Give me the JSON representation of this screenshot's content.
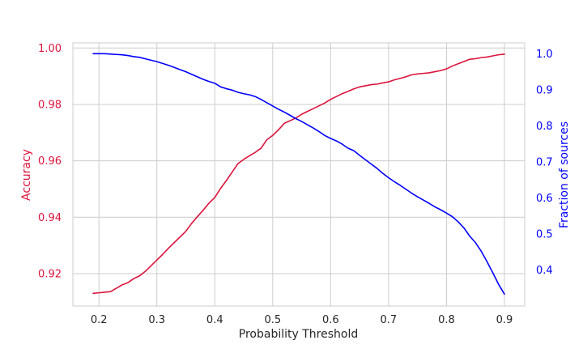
{
  "chart_data": {
    "type": "line",
    "xlabel": "Probability Threshold",
    "xlim": [
      0.155,
      0.935
    ],
    "xticks": [
      0.2,
      0.3,
      0.4,
      0.5,
      0.6,
      0.7,
      0.8,
      0.9
    ],
    "grid": true,
    "y_left": {
      "label": "Accuracy",
      "color": "#dc143c",
      "lim": [
        0.9085,
        1.0018
      ],
      "ticks": [
        0.92,
        0.94,
        0.96,
        0.98,
        1.0
      ]
    },
    "y_right": {
      "label": "Fraction of sources",
      "color": "#0000ff",
      "lim": [
        0.3,
        1.03
      ],
      "ticks": [
        0.4,
        0.5,
        0.6,
        0.7,
        0.8,
        0.9,
        1.0
      ]
    },
    "x": [
      0.19,
      0.2,
      0.21,
      0.22,
      0.23,
      0.24,
      0.25,
      0.26,
      0.27,
      0.28,
      0.29,
      0.3,
      0.31,
      0.32,
      0.33,
      0.34,
      0.35,
      0.36,
      0.37,
      0.38,
      0.39,
      0.4,
      0.41,
      0.42,
      0.43,
      0.44,
      0.45,
      0.46,
      0.47,
      0.48,
      0.49,
      0.5,
      0.51,
      0.52,
      0.53,
      0.54,
      0.55,
      0.56,
      0.57,
      0.58,
      0.59,
      0.6,
      0.61,
      0.62,
      0.63,
      0.64,
      0.65,
      0.66,
      0.67,
      0.68,
      0.69,
      0.7,
      0.71,
      0.72,
      0.73,
      0.74,
      0.75,
      0.76,
      0.77,
      0.78,
      0.79,
      0.8,
      0.81,
      0.82,
      0.83,
      0.84,
      0.85,
      0.86,
      0.87,
      0.88,
      0.89,
      0.9
    ],
    "series": [
      {
        "axis": "left",
        "color": "#dc143c",
        "values": [
          0.913,
          0.9132,
          0.9134,
          0.9136,
          0.9148,
          0.916,
          0.9168,
          0.9182,
          0.9192,
          0.9208,
          0.9228,
          0.9248,
          0.9268,
          0.929,
          0.931,
          0.933,
          0.935,
          0.9378,
          0.9402,
          0.9425,
          0.945,
          0.947,
          0.9502,
          0.953,
          0.956,
          0.959,
          0.9605,
          0.9618,
          0.963,
          0.9645,
          0.9675,
          0.969,
          0.971,
          0.9733,
          0.9742,
          0.9752,
          0.9765,
          0.9775,
          0.9785,
          0.9795,
          0.9805,
          0.9818,
          0.9828,
          0.9838,
          0.9846,
          0.9855,
          0.9862,
          0.9866,
          0.987,
          0.9872,
          0.9876,
          0.988,
          0.9887,
          0.9892,
          0.9898,
          0.9905,
          0.9908,
          0.991,
          0.9912,
          0.9916,
          0.992,
          0.9926,
          0.9936,
          0.9944,
          0.9952,
          0.996,
          0.9962,
          0.9966,
          0.9968,
          0.9972,
          0.9976,
          0.9978
        ]
      },
      {
        "axis": "right",
        "color": "#0000ff",
        "values": [
          1.0,
          1.0,
          1.0,
          0.999,
          0.998,
          0.997,
          0.995,
          0.992,
          0.99,
          0.986,
          0.982,
          0.978,
          0.973,
          0.968,
          0.962,
          0.956,
          0.95,
          0.943,
          0.936,
          0.929,
          0.923,
          0.918,
          0.908,
          0.903,
          0.899,
          0.893,
          0.889,
          0.886,
          0.881,
          0.873,
          0.864,
          0.855,
          0.846,
          0.838,
          0.829,
          0.82,
          0.812,
          0.803,
          0.794,
          0.784,
          0.773,
          0.765,
          0.758,
          0.749,
          0.738,
          0.731,
          0.718,
          0.706,
          0.694,
          0.682,
          0.668,
          0.656,
          0.645,
          0.635,
          0.624,
          0.613,
          0.603,
          0.594,
          0.585,
          0.575,
          0.567,
          0.558,
          0.548,
          0.534,
          0.517,
          0.494,
          0.476,
          0.452,
          0.423,
          0.392,
          0.36,
          0.333
        ]
      }
    ]
  }
}
